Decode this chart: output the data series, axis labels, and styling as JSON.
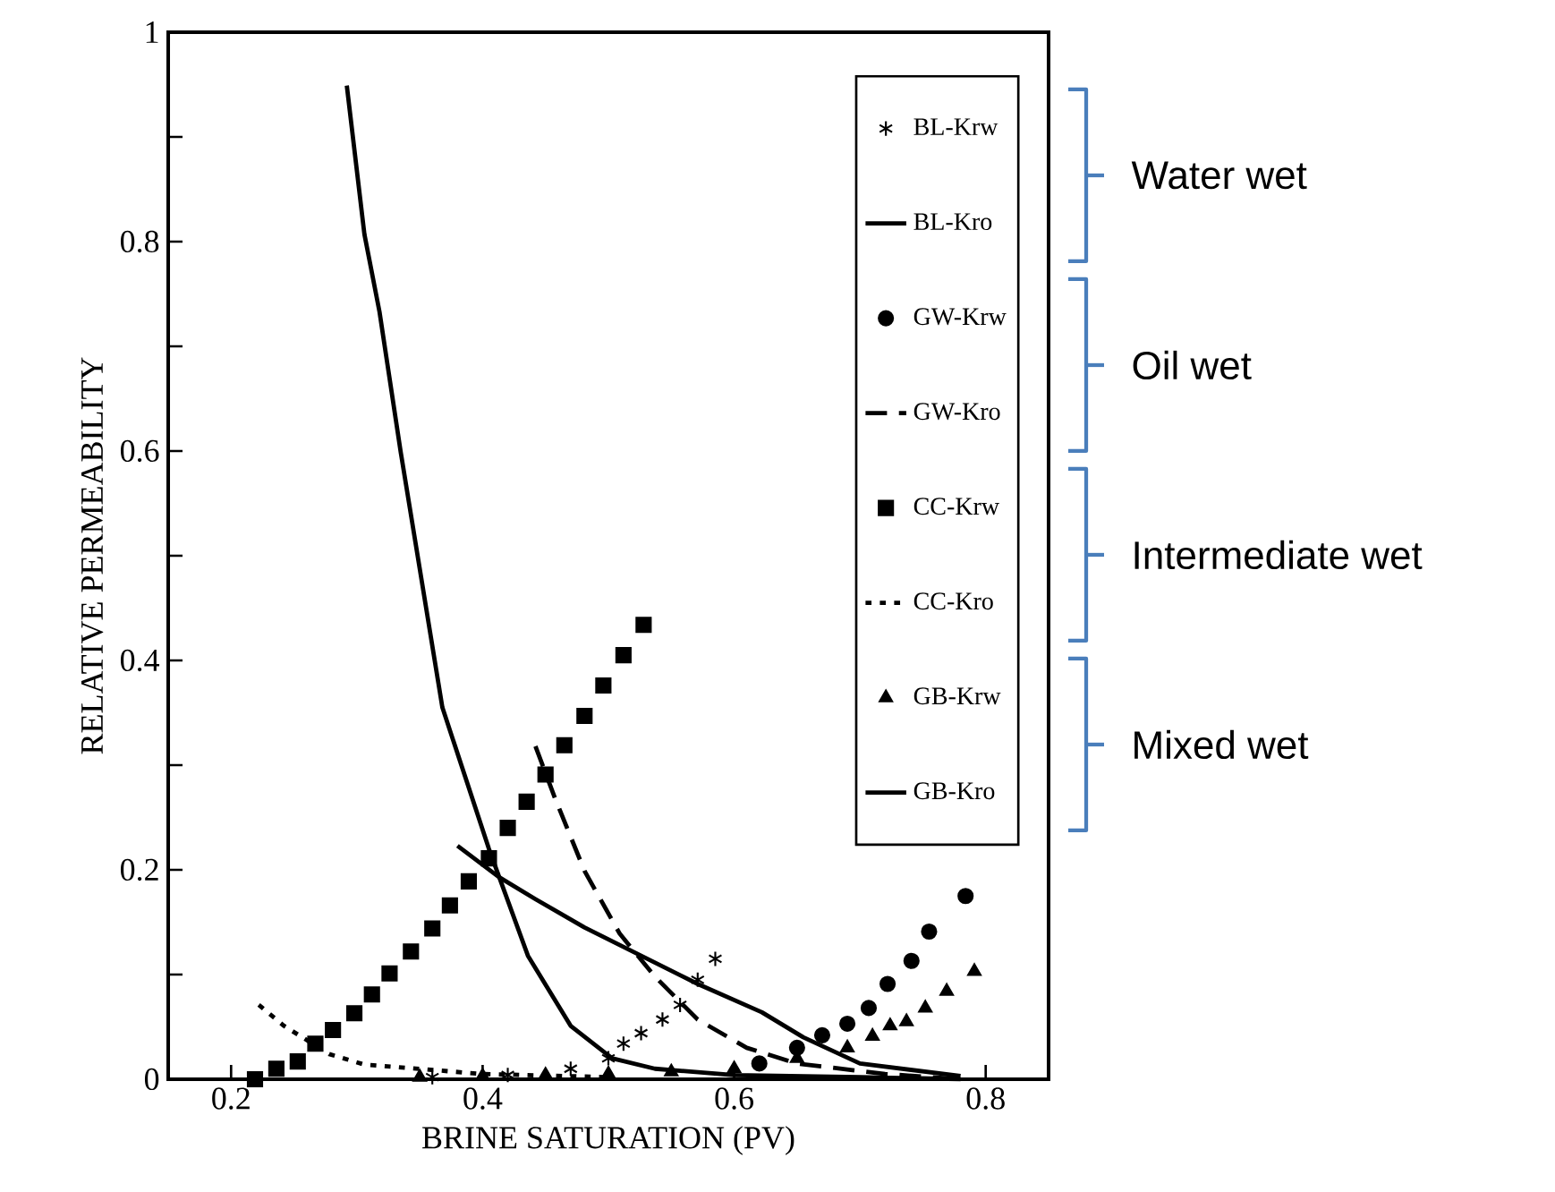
{
  "chart_data": {
    "type": "line",
    "xlabel": "BRINE SATURATION (PV)",
    "ylabel": "RELATIVE PERMEABILITY",
    "xlim": [
      0.15,
      0.85
    ],
    "ylim": [
      0,
      1
    ],
    "xticks": [
      0.2,
      0.4,
      0.6,
      0.8
    ],
    "yticks": [
      0,
      {
        "value": 0.1,
        "label": null
      },
      0.2,
      {
        "value": 0.3,
        "label": null
      },
      0.4,
      {
        "value": 0.5,
        "label": null
      },
      0.6,
      {
        "value": 0.7,
        "label": null
      },
      0.8,
      {
        "value": 0.9,
        "label": null
      },
      1
    ],
    "legend": "top right",
    "annotations": [
      "Water wet",
      "Oil wet",
      "Intermediate wet",
      "Mixed wet"
    ],
    "series": [
      {
        "name": "BL-Krw",
        "type": "scatter",
        "marker": "cross",
        "color": "#000000",
        "x": [
          0.36,
          0.42,
          0.47,
          0.5,
          0.512,
          0.526,
          0.543,
          0.557,
          0.571,
          0.585
        ],
        "values": [
          0.002,
          0.004,
          0.01,
          0.02,
          0.034,
          0.044,
          0.057,
          0.071,
          0.095,
          0.115
        ]
      },
      {
        "name": "BL-Kro",
        "line_style": "solid",
        "color": "#000000",
        "x": [
          0.292,
          0.306,
          0.318,
          0.335,
          0.368,
          0.405,
          0.436,
          0.47,
          0.503,
          0.537,
          0.6,
          0.7,
          0.78
        ],
        "values": [
          0.949,
          0.807,
          0.733,
          0.598,
          0.355,
          0.22,
          0.118,
          0.051,
          0.02,
          0.01,
          0.004,
          0.002,
          0
        ]
      },
      {
        "name": "GW-Krw",
        "type": "scatter",
        "marker": "circle",
        "color": "#000000",
        "x": [
          0.62,
          0.65,
          0.67,
          0.69,
          0.707,
          0.722,
          0.741,
          0.755,
          0.784
        ],
        "values": [
          0.015,
          0.03,
          0.042,
          0.053,
          0.068,
          0.091,
          0.113,
          0.141,
          0.175
        ]
      },
      {
        "name": "GW-Kro",
        "line_style": "dashed",
        "color": "#000000",
        "x": [
          0.442,
          0.458,
          0.481,
          0.509,
          0.537,
          0.571,
          0.61,
          0.65,
          0.72,
          0.78
        ],
        "values": [
          0.318,
          0.267,
          0.199,
          0.139,
          0.098,
          0.057,
          0.03,
          0.015,
          0.005,
          0
        ]
      },
      {
        "name": "CC-Krw",
        "type": "scatter",
        "marker": "square",
        "color": "#000000",
        "x": [
          0.219,
          0.236,
          0.253,
          0.267,
          0.281,
          0.298,
          0.312,
          0.326,
          0.343,
          0.36,
          0.374,
          0.389,
          0.405,
          0.42,
          0.435,
          0.45,
          0.465,
          0.481,
          0.496,
          0.512,
          0.528
        ],
        "values": [
          0,
          0.01,
          0.017,
          0.034,
          0.047,
          0.063,
          0.081,
          0.101,
          0.122,
          0.144,
          0.166,
          0.189,
          0.211,
          0.24,
          0.265,
          0.291,
          0.319,
          0.347,
          0.376,
          0.405,
          0.434
        ]
      },
      {
        "name": "CC-Kro",
        "line_style": "dotted",
        "color": "#000000",
        "x": [
          0.222,
          0.242,
          0.278,
          0.306,
          0.4,
          0.5
        ],
        "values": [
          0.071,
          0.051,
          0.024,
          0.014,
          0.005,
          0.002
        ]
      },
      {
        "name": "GB-Krw",
        "type": "scatter",
        "marker": "triangle",
        "color": "#000000",
        "x": [
          0.35,
          0.4,
          0.45,
          0.5,
          0.55,
          0.6,
          0.65,
          0.69,
          0.71,
          0.724,
          0.737,
          0.752,
          0.769,
          0.791
        ],
        "values": [
          0.002,
          0.003,
          0.004,
          0.005,
          0.007,
          0.01,
          0.02,
          0.03,
          0.041,
          0.051,
          0.055,
          0.068,
          0.084,
          0.103
        ]
      },
      {
        "name": "GB-Kro",
        "line_style": "solid",
        "color": "#000000",
        "x": [
          0.38,
          0.413,
          0.442,
          0.481,
          0.526,
          0.571,
          0.622,
          0.655,
          0.7,
          0.78
        ],
        "values": [
          0.223,
          0.193,
          0.172,
          0.145,
          0.118,
          0.091,
          0.064,
          0.04,
          0.015,
          0.003
        ]
      }
    ]
  }
}
